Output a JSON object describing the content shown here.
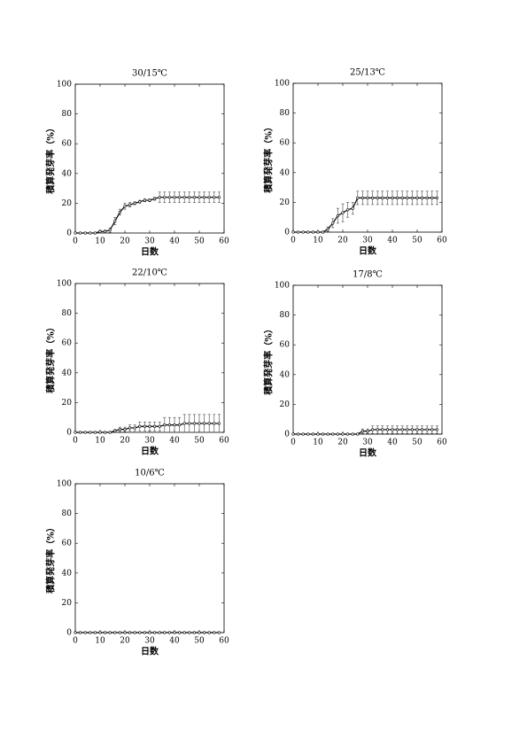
{
  "chart_data": [
    {
      "type": "line",
      "title": "30/15℃",
      "xlabel": "日数",
      "ylabel": "積算発芽率（%）",
      "xlim": [
        0,
        60
      ],
      "xticks": [
        0,
        10,
        20,
        30,
        40,
        50,
        60
      ],
      "ylim": [
        0,
        100
      ],
      "yticks": [
        0,
        20,
        40,
        60,
        80,
        100
      ],
      "x": [
        0,
        2,
        4,
        6,
        8,
        10,
        12,
        14,
        16,
        18,
        20,
        22,
        24,
        26,
        28,
        30,
        32,
        34,
        36,
        38,
        40,
        42,
        44,
        46,
        48,
        50,
        52,
        54,
        56,
        58
      ],
      "series": [
        {
          "color": "#000000",
          "values": [
            0,
            0,
            0,
            0,
            0,
            1,
            1,
            2,
            8,
            14,
            18,
            19,
            20,
            21,
            22,
            22,
            23,
            24,
            24,
            24,
            24,
            24,
            24,
            24,
            24,
            24,
            24,
            24,
            24,
            24
          ],
          "errors": [
            0,
            0,
            0,
            0,
            0.5,
            1,
            1,
            1.5,
            2.5,
            2,
            2,
            1.5,
            1,
            1,
            1,
            1,
            1,
            3.5,
            3.5,
            3.5,
            3.5,
            3.5,
            3.5,
            3.5,
            3.5,
            3.5,
            3.5,
            3.5,
            3.5,
            3.5
          ]
        }
      ]
    },
    {
      "type": "line",
      "title": "25/13℃",
      "xlabel": "日数",
      "ylabel": "積算発芽率（%）",
      "xlim": [
        0,
        60
      ],
      "xticks": [
        0,
        10,
        20,
        30,
        40,
        50,
        60
      ],
      "ylim": [
        0,
        100
      ],
      "yticks": [
        0,
        20,
        40,
        60,
        80,
        100
      ],
      "x": [
        0,
        2,
        4,
        6,
        8,
        10,
        12,
        14,
        16,
        18,
        20,
        22,
        24,
        26,
        28,
        30,
        32,
        34,
        36,
        38,
        40,
        42,
        44,
        46,
        48,
        50,
        52,
        54,
        56,
        58
      ],
      "series": [
        {
          "color": "#000000",
          "values": [
            0,
            0,
            0,
            0,
            0,
            0,
            0,
            2,
            6,
            11,
            13,
            15,
            16,
            23,
            23,
            23,
            23,
            23,
            23,
            23,
            23,
            23,
            23,
            23,
            23,
            23,
            23,
            23,
            23,
            23
          ],
          "errors": [
            0,
            0,
            0,
            0,
            0,
            0,
            0.5,
            1.5,
            3,
            5,
            6,
            5,
            4,
            4.5,
            4.5,
            4.5,
            4.5,
            4.5,
            4.5,
            4.5,
            4.5,
            4.5,
            4.5,
            4.5,
            4.5,
            4.5,
            4.5,
            4.5,
            4.5,
            4.5
          ]
        }
      ]
    },
    {
      "type": "line",
      "title": "22/10℃",
      "xlabel": "日数",
      "ylabel": "積算発芽率（%）",
      "xlim": [
        0,
        60
      ],
      "xticks": [
        0,
        10,
        20,
        30,
        40,
        50,
        60
      ],
      "ylim": [
        0,
        100
      ],
      "yticks": [
        0,
        20,
        40,
        60,
        80,
        100
      ],
      "x": [
        0,
        2,
        4,
        6,
        8,
        10,
        12,
        14,
        16,
        18,
        20,
        22,
        24,
        26,
        28,
        30,
        32,
        34,
        36,
        38,
        40,
        42,
        44,
        46,
        48,
        50,
        52,
        54,
        56,
        58
      ],
      "series": [
        {
          "color": "#000000",
          "values": [
            0,
            0,
            0,
            0,
            0,
            0,
            0,
            0,
            1,
            2,
            2,
            3,
            3,
            4,
            4,
            4,
            4,
            4,
            5,
            5,
            5,
            5,
            6,
            6,
            6,
            6,
            6,
            6,
            6,
            6
          ],
          "errors": [
            0,
            0,
            0,
            0,
            0,
            0,
            0,
            0,
            1,
            1.5,
            1.5,
            2,
            2,
            3,
            3,
            3,
            3,
            3,
            5,
            5,
            5,
            5,
            6,
            6,
            6,
            6,
            6,
            6,
            6,
            6
          ]
        }
      ]
    },
    {
      "type": "line",
      "title": "17/8℃",
      "xlabel": "日数",
      "ylabel": "積算発芽率（%）",
      "xlim": [
        0,
        60
      ],
      "xticks": [
        0,
        10,
        20,
        30,
        40,
        50,
        60
      ],
      "ylim": [
        0,
        100
      ],
      "yticks": [
        0,
        20,
        40,
        60,
        80,
        100
      ],
      "x": [
        0,
        2,
        4,
        6,
        8,
        10,
        12,
        14,
        16,
        18,
        20,
        22,
        24,
        26,
        28,
        30,
        32,
        34,
        36,
        38,
        40,
        42,
        44,
        46,
        48,
        50,
        52,
        54,
        56,
        58
      ],
      "series": [
        {
          "color": "#000000",
          "values": [
            0,
            0,
            0,
            0,
            0,
            0,
            0,
            0,
            0,
            0,
            0,
            0,
            0,
            0,
            2,
            2,
            3,
            3,
            3,
            3,
            3,
            3,
            3,
            3,
            3,
            3,
            3,
            3,
            3,
            3
          ],
          "errors": [
            0,
            0,
            0,
            0,
            0,
            0,
            0,
            0,
            0,
            0,
            0,
            0,
            0,
            0,
            1.5,
            1.5,
            2.5,
            2.5,
            2.5,
            2.5,
            2.5,
            2.5,
            2.5,
            2.5,
            2.5,
            2.5,
            2.5,
            2.5,
            2.5,
            2.5
          ]
        }
      ]
    },
    {
      "type": "line",
      "title": "10/6℃",
      "xlabel": "日数",
      "ylabel": "積算発芽率（%）",
      "xlim": [
        0,
        60
      ],
      "xticks": [
        0,
        10,
        20,
        30,
        40,
        50,
        60
      ],
      "ylim": [
        0,
        100
      ],
      "yticks": [
        0,
        20,
        40,
        60,
        80,
        100
      ],
      "x": [
        0,
        2,
        4,
        6,
        8,
        10,
        12,
        14,
        16,
        18,
        20,
        22,
        24,
        26,
        28,
        30,
        32,
        34,
        36,
        38,
        40,
        42,
        44,
        46,
        48,
        50,
        52,
        54,
        56,
        58
      ],
      "series": [
        {
          "color": "#000000",
          "values": [
            0,
            0,
            0,
            0,
            0,
            0,
            0,
            0,
            0,
            0,
            0,
            0,
            0,
            0,
            0,
            0,
            0,
            0,
            0,
            0,
            0,
            0,
            0,
            0,
            0,
            0,
            0,
            0,
            0,
            0
          ],
          "errors": [
            0,
            0,
            0,
            0,
            0,
            0,
            0,
            0,
            0,
            0,
            0,
            0,
            0,
            0,
            0,
            0,
            0,
            0,
            0,
            0,
            0,
            0,
            0,
            0,
            0,
            0,
            0,
            0,
            0,
            0
          ]
        }
      ]
    }
  ]
}
